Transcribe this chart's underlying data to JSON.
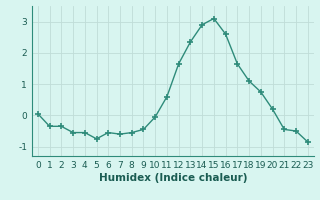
{
  "x": [
    0,
    1,
    2,
    3,
    4,
    5,
    6,
    7,
    8,
    9,
    10,
    11,
    12,
    13,
    14,
    15,
    16,
    17,
    18,
    19,
    20,
    21,
    22,
    23
  ],
  "y": [
    0.05,
    -0.35,
    -0.35,
    -0.55,
    -0.55,
    -0.75,
    -0.55,
    -0.6,
    -0.55,
    -0.45,
    -0.05,
    0.6,
    1.65,
    2.35,
    2.9,
    3.1,
    2.6,
    1.65,
    1.1,
    0.75,
    0.2,
    -0.45,
    -0.5,
    -0.85
  ],
  "line_color": "#2e8b7a",
  "marker": "+",
  "marker_size": 4,
  "linewidth": 1.0,
  "background_color": "#d8f5f0",
  "grid_color": "#c0ddd8",
  "xlabel": "Humidex (Indice chaleur)",
  "ylabel": "",
  "xlim": [
    -0.5,
    23.5
  ],
  "ylim": [
    -1.3,
    3.5
  ],
  "yticks": [
    -1,
    0,
    1,
    2,
    3
  ],
  "xticks": [
    0,
    1,
    2,
    3,
    4,
    5,
    6,
    7,
    8,
    9,
    10,
    11,
    12,
    13,
    14,
    15,
    16,
    17,
    18,
    19,
    20,
    21,
    22,
    23
  ],
  "tick_fontsize": 6.5,
  "xlabel_fontsize": 7.5
}
